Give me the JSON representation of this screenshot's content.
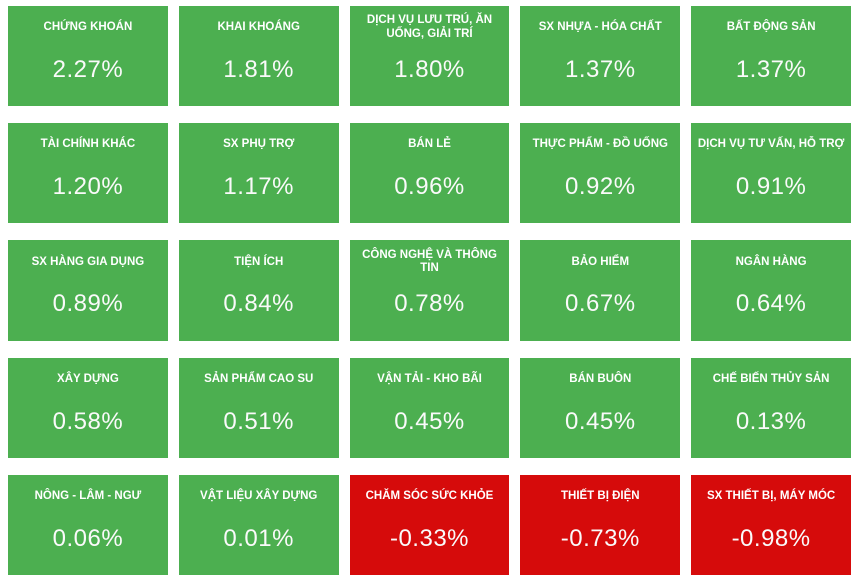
{
  "colors": {
    "positive": "#4CAF50",
    "negative": "#D60B0B",
    "label_text": "#FFFFFF",
    "value_text": "#FAFAFA",
    "background": "#FFFFFF"
  },
  "grid": {
    "columns": 5,
    "rows": 5
  },
  "tiles": [
    {
      "label": "CHỨNG KHOÁN",
      "value": "2.27%",
      "trend": "up"
    },
    {
      "label": "KHAI KHOÁNG",
      "value": "1.81%",
      "trend": "up"
    },
    {
      "label": "DỊCH VỤ LƯU TRÚ, ĂN UỐNG, GIẢI TRÍ",
      "value": "1.80%",
      "trend": "up"
    },
    {
      "label": "SX NHỰA - HÓA CHẤT",
      "value": "1.37%",
      "trend": "up"
    },
    {
      "label": "BẤT ĐỘNG SẢN",
      "value": "1.37%",
      "trend": "up"
    },
    {
      "label": "TÀI CHÍNH KHÁC",
      "value": "1.20%",
      "trend": "up"
    },
    {
      "label": "SX PHỤ TRỢ",
      "value": "1.17%",
      "trend": "up"
    },
    {
      "label": "BÁN LẺ",
      "value": "0.96%",
      "trend": "up"
    },
    {
      "label": "THỰC PHẨM - ĐỒ UỐNG",
      "value": "0.92%",
      "trend": "up"
    },
    {
      "label": "DỊCH VỤ TƯ VẤN, HỖ TRỢ",
      "value": "0.91%",
      "trend": "up"
    },
    {
      "label": "SX HÀNG GIA DỤNG",
      "value": "0.89%",
      "trend": "up"
    },
    {
      "label": "TIỆN ÍCH",
      "value": "0.84%",
      "trend": "up"
    },
    {
      "label": "CÔNG NGHỆ VÀ THÔNG TIN",
      "value": "0.78%",
      "trend": "up"
    },
    {
      "label": "BẢO HIỂM",
      "value": "0.67%",
      "trend": "up"
    },
    {
      "label": "NGÂN HÀNG",
      "value": "0.64%",
      "trend": "up"
    },
    {
      "label": "XÂY DỰNG",
      "value": "0.58%",
      "trend": "up"
    },
    {
      "label": "SẢN PHẨM CAO SU",
      "value": "0.51%",
      "trend": "up"
    },
    {
      "label": "VẬN TẢI - KHO BÃI",
      "value": "0.45%",
      "trend": "up"
    },
    {
      "label": "BÁN BUÔN",
      "value": "0.45%",
      "trend": "up"
    },
    {
      "label": "CHẾ BIẾN THỦY SẢN",
      "value": "0.13%",
      "trend": "up"
    },
    {
      "label": "NÔNG - LÂM - NGƯ",
      "value": "0.06%",
      "trend": "up"
    },
    {
      "label": "VẬT LIỆU XÂY DỰNG",
      "value": "0.01%",
      "trend": "up"
    },
    {
      "label": "CHĂM SÓC SỨC KHỎE",
      "value": "-0.33%",
      "trend": "down"
    },
    {
      "label": "THIẾT BỊ ĐIỆN",
      "value": "-0.73%",
      "trend": "down"
    },
    {
      "label": "SX THIẾT BỊ, MÁY MÓC",
      "value": "-0.98%",
      "trend": "down"
    }
  ],
  "chart_data": {
    "type": "heatmap",
    "title": "",
    "unit": "%",
    "categories": [
      "CHỨNG KHOÁN",
      "KHAI KHOÁNG",
      "DỊCH VỤ LƯU TRÚ, ĂN UỐNG, GIẢI TRÍ",
      "SX NHỰA - HÓA CHẤT",
      "BẤT ĐỘNG SẢN",
      "TÀI CHÍNH KHÁC",
      "SX PHỤ TRỢ",
      "BÁN LẺ",
      "THỰC PHẨM - ĐỒ UỐNG",
      "DỊCH VỤ TƯ VẤN, HỖ TRỢ",
      "SX HÀNG GIA DỤNG",
      "TIỆN ÍCH",
      "CÔNG NGHỆ VÀ THÔNG TIN",
      "BẢO HIỂM",
      "NGÂN HÀNG",
      "XÂY DỰNG",
      "SẢN PHẨM CAO SU",
      "VẬN TẢI - KHO BÃI",
      "BÁN BUÔN",
      "CHẾ BIẾN THỦY SẢN",
      "NÔNG - LÂM - NGƯ",
      "VẬT LIỆU XÂY DỰNG",
      "CHĂM SÓC SỨC KHỎE",
      "THIẾT BỊ ĐIỆN",
      "SX THIẾT BỊ, MÁY MÓC"
    ],
    "values": [
      2.27,
      1.81,
      1.8,
      1.37,
      1.37,
      1.2,
      1.17,
      0.96,
      0.92,
      0.91,
      0.89,
      0.84,
      0.78,
      0.67,
      0.64,
      0.58,
      0.51,
      0.45,
      0.45,
      0.13,
      0.06,
      0.01,
      -0.33,
      -0.73,
      -0.98
    ],
    "layout": {
      "columns": 5,
      "rows": 5,
      "order": "row-major, descending by value"
    },
    "positive_color": "#4CAF50",
    "negative_color": "#D60B0B"
  }
}
